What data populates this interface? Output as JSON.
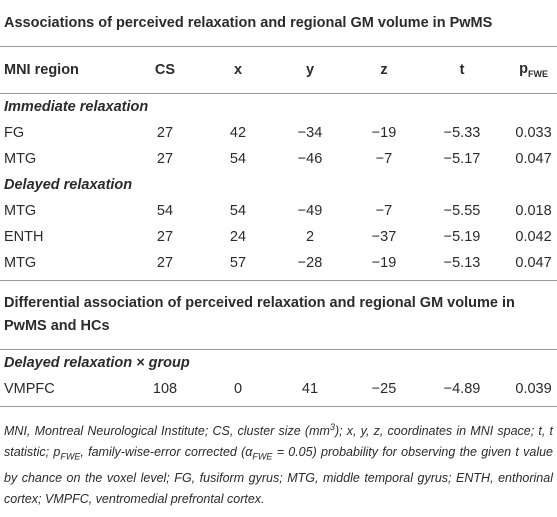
{
  "columns": [
    "MNI region",
    "CS",
    "x",
    "y",
    "z",
    "t"
  ],
  "p_column": {
    "symbol": "p",
    "subscript": "FWE"
  },
  "sections": [
    {
      "title": "Associations of perceived relaxation and regional GM volume in PwMS",
      "groups": [
        {
          "label": "Immediate relaxation",
          "rows": [
            [
              "FG",
              "27",
              "42",
              "−34",
              "−19",
              "−5.33",
              "0.033"
            ],
            [
              "MTG",
              "27",
              "54",
              "−46",
              "−7",
              "−5.17",
              "0.047"
            ]
          ]
        },
        {
          "label": "Delayed relaxation",
          "rows": [
            [
              "MTG",
              "54",
              "54",
              "−49",
              "−7",
              "−5.55",
              "0.018"
            ],
            [
              "ENTH",
              "27",
              "24",
              "2",
              "−37",
              "−5.19",
              "0.042"
            ],
            [
              "MTG",
              "27",
              "57",
              "−28",
              "−19",
              "−5.13",
              "0.047"
            ]
          ]
        }
      ]
    },
    {
      "title": "Differential association of perceived relaxation and regional GM volume in PwMS and HCs",
      "groups": [
        {
          "label": "Delayed relaxation × group",
          "rows": [
            [
              "VMPFC",
              "108",
              "0",
              "41",
              "−25",
              "−4.89",
              "0.039"
            ]
          ]
        }
      ]
    }
  ],
  "footnote": [
    "MNI, Montreal Neurological Institute; CS, cluster size (mm",
    "3",
    "); x, y, z, coordinates in MNI space; t, t statistic; p",
    "FWE",
    ", family-wise-error corrected (α",
    "FWE",
    " = 0.05) probability for observing the given t value by chance on the voxel level; FG, fusiform gyrus; MTG, middle temporal gyrus; ENTH, enthorinal cortex; VMPFC, ventromedial prefrontal cortex."
  ]
}
